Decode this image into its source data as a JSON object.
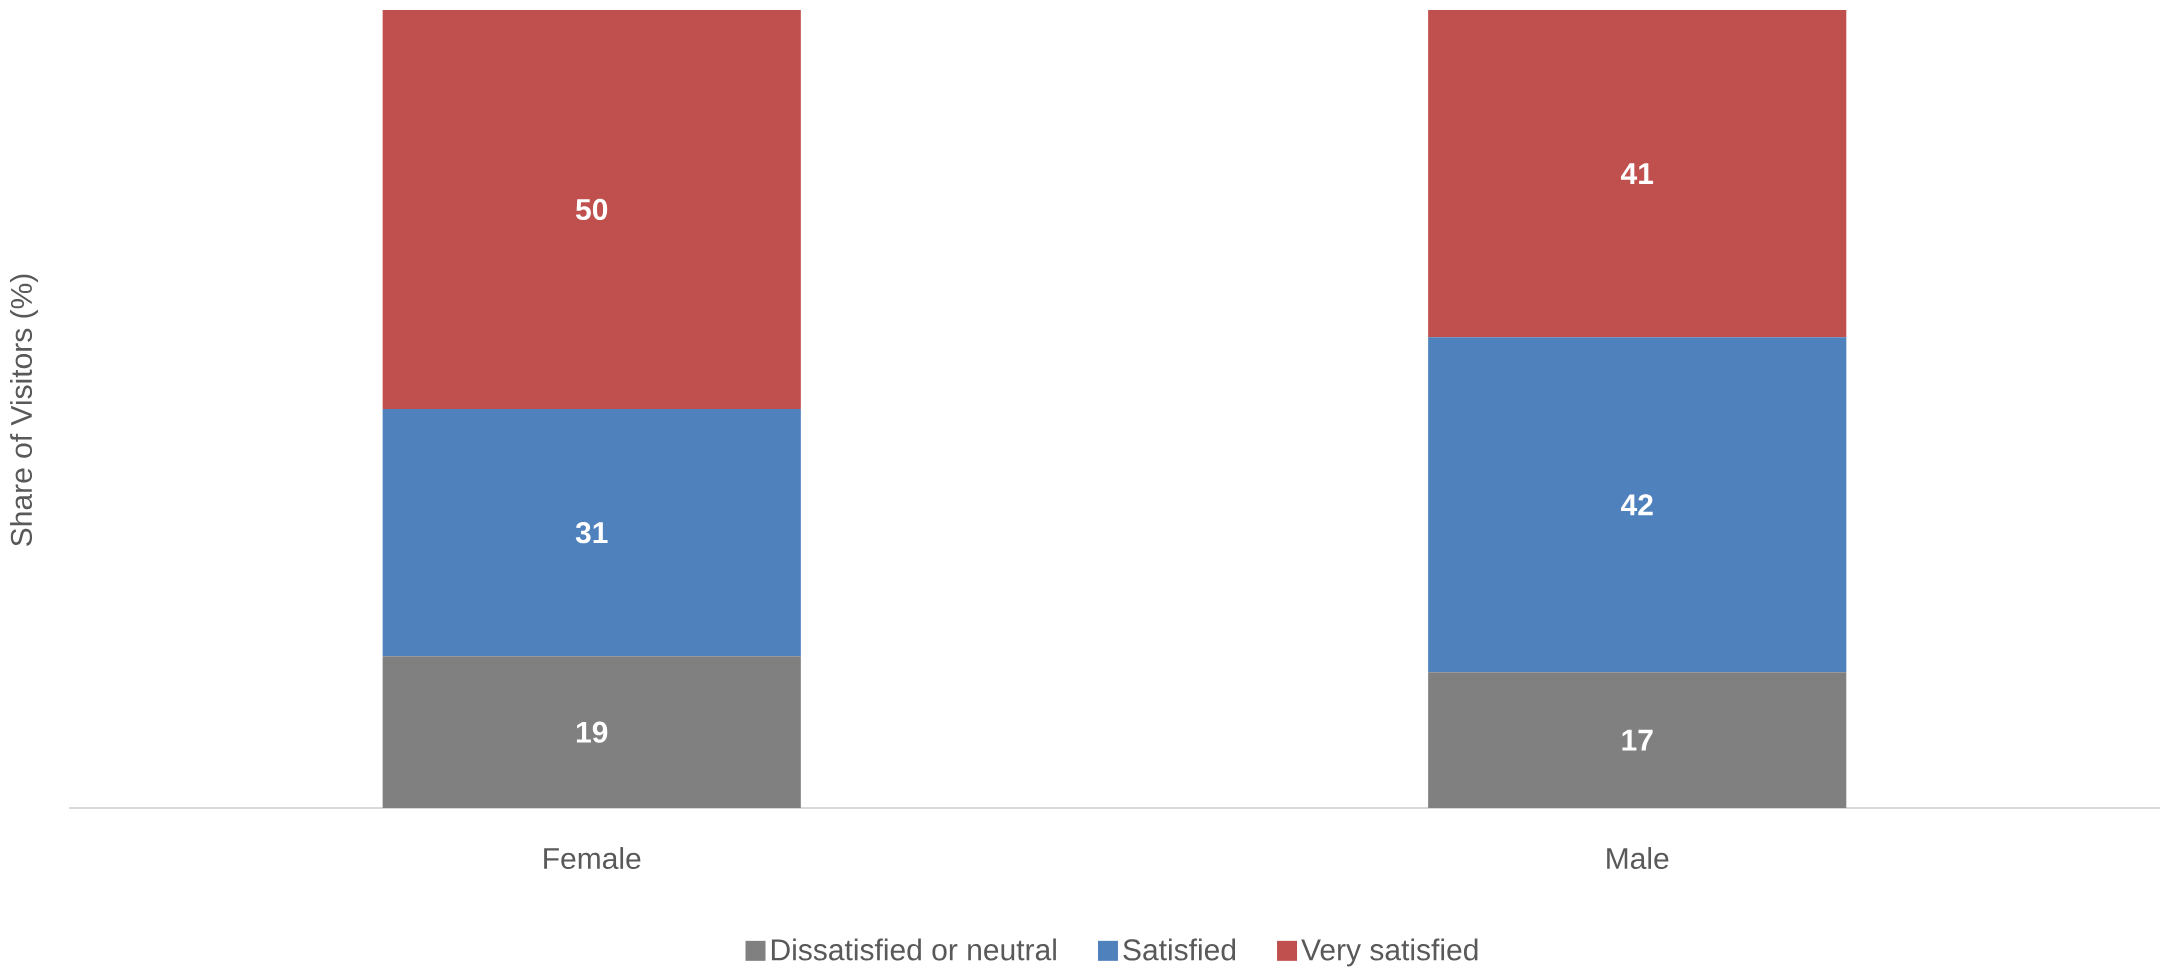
{
  "chart_data": {
    "type": "bar",
    "stacked": true,
    "ylabel": "Share of Visitors (%)",
    "categories": [
      "Female",
      "Male"
    ],
    "series": [
      {
        "name": "Dissatisfied or neutral",
        "color": "#808080",
        "values": [
          19,
          17
        ]
      },
      {
        "name": "Satisfied",
        "color": "#4f81bd",
        "values": [
          31,
          42
        ]
      },
      {
        "name": "Very satisfied",
        "color": "#c0504d",
        "values": [
          50,
          41
        ]
      }
    ],
    "data_labels": true,
    "legend": "bottom"
  }
}
